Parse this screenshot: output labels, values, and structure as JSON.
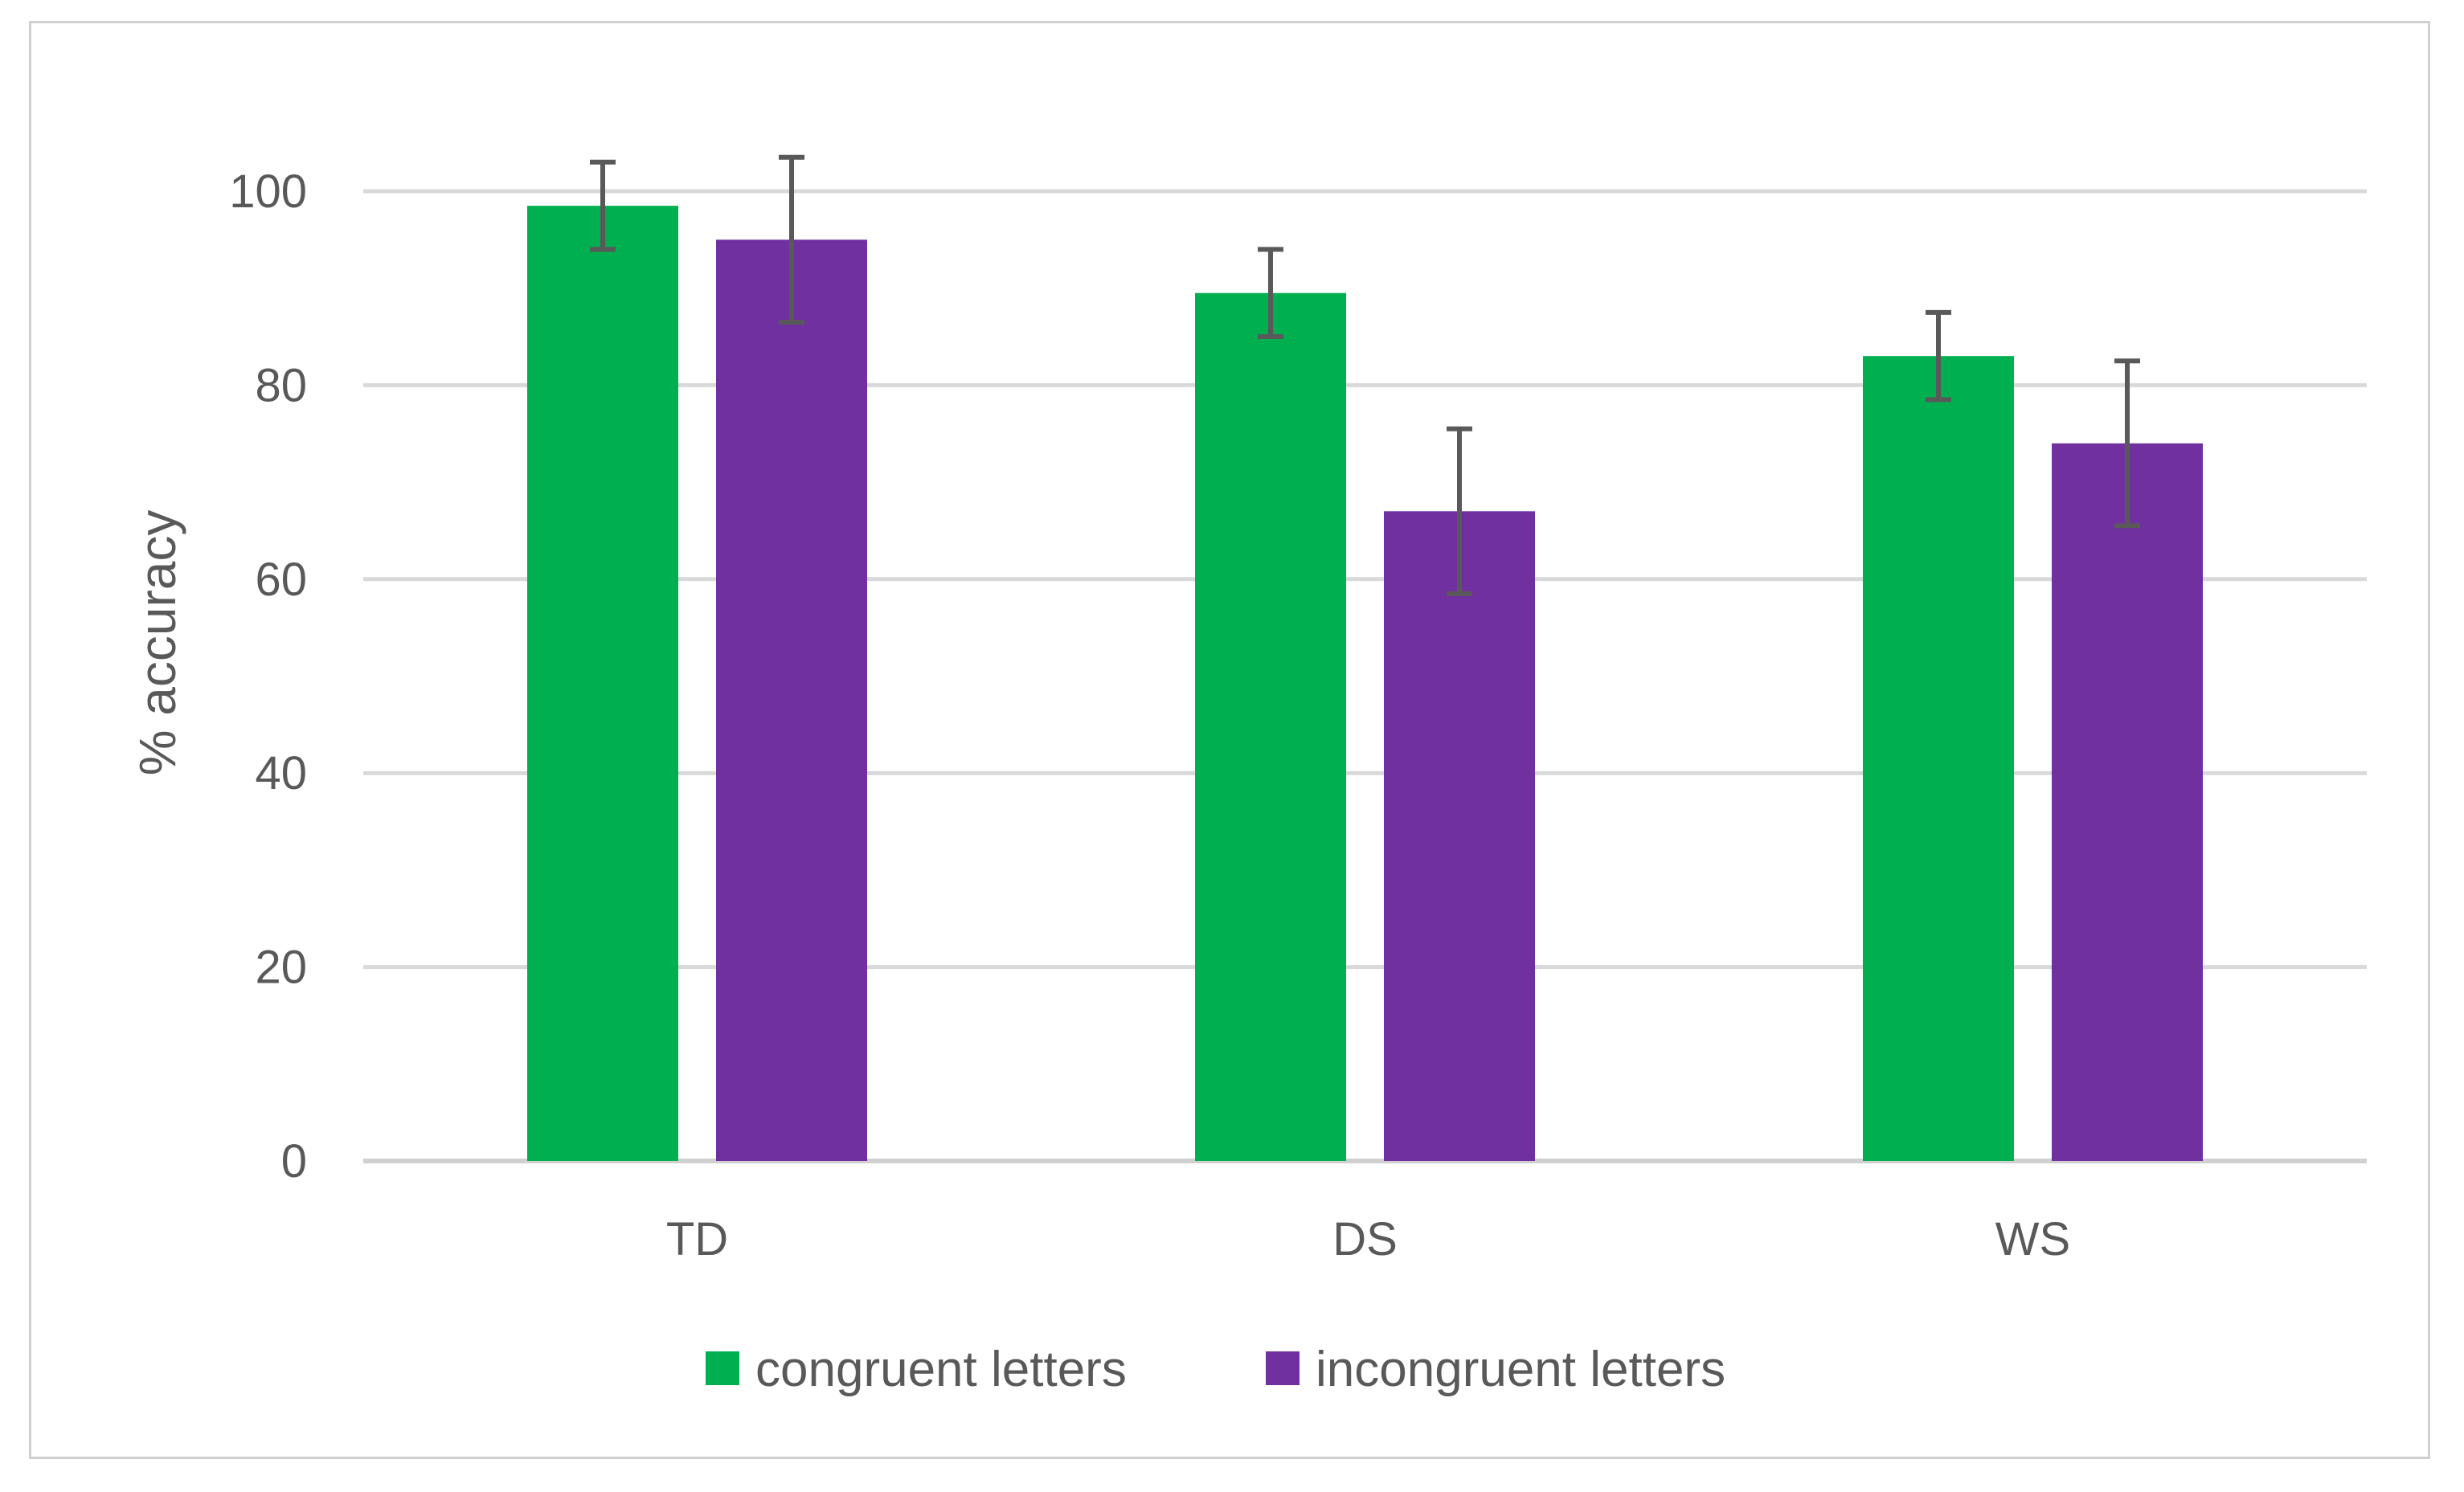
{
  "chart_data": {
    "type": "bar",
    "title": "",
    "xlabel": "",
    "ylabel": "% accuracy",
    "ylim": [
      0,
      100
    ],
    "yticks": [
      0,
      20,
      40,
      60,
      80,
      100
    ],
    "categories": [
      "TD",
      "DS",
      "WS"
    ],
    "grid": true,
    "legend_position": "bottom",
    "series": [
      {
        "name": "congruent letters",
        "color": "#00b050",
        "values": [
          98.5,
          89.5,
          83.0
        ],
        "error": [
          4.5,
          4.5,
          4.5
        ]
      },
      {
        "name": "incongruent letters",
        "color": "#7030a0",
        "values": [
          95.0,
          67.0,
          74.0
        ],
        "error": [
          8.5,
          8.5,
          8.5
        ]
      }
    ]
  }
}
